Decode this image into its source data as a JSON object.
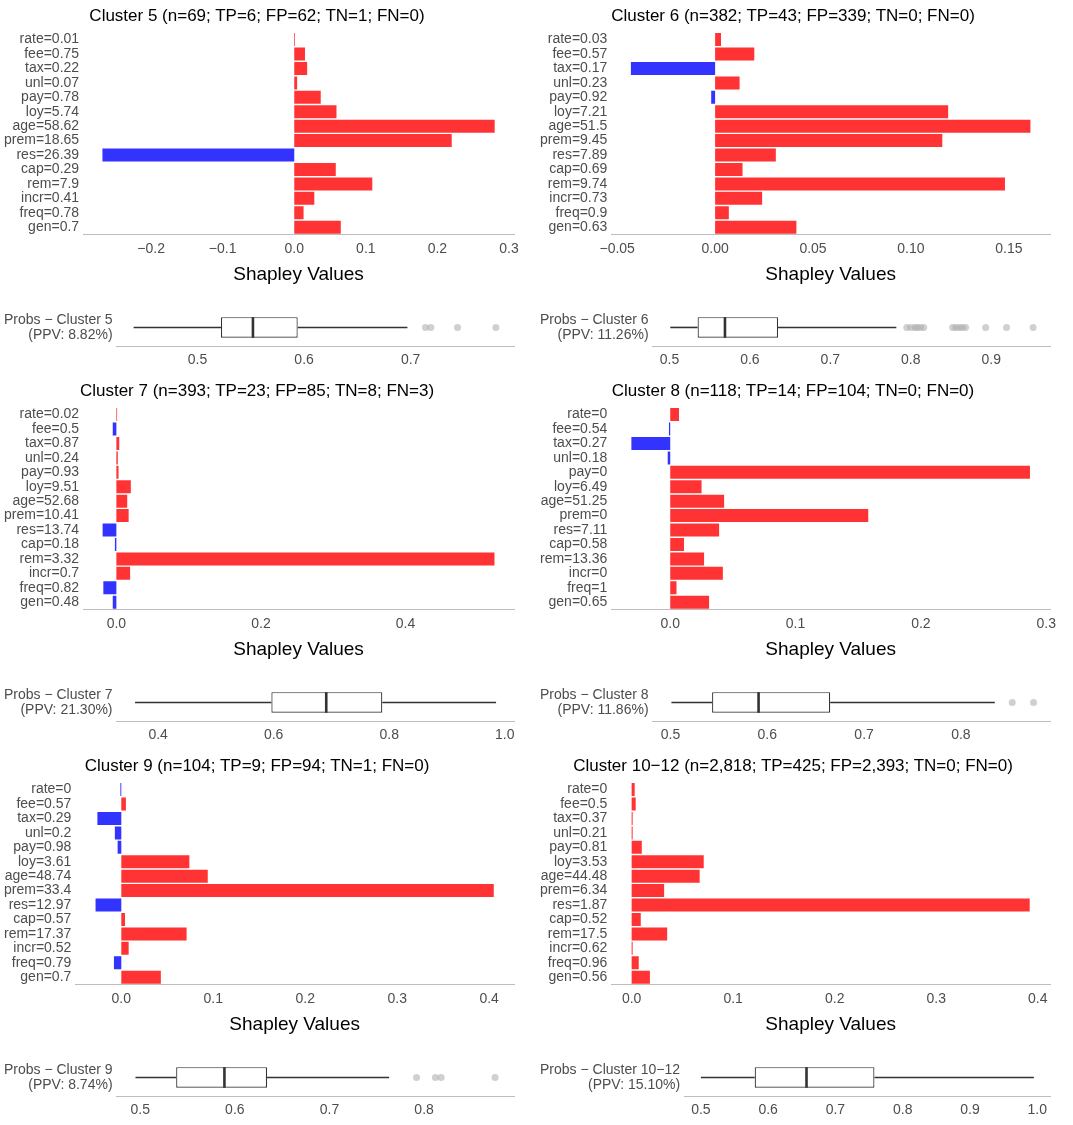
{
  "chart_data": [
    {
      "type": "bar",
      "orientation": "horizontal",
      "title": "Cluster 5 (n=69; TP=6; FP=62; TN=1; FN=0)",
      "xlabel": "Shapley Values",
      "categories": [
        "rate=0.01",
        "fee=0.75",
        "tax=0.22",
        "unl=0.07",
        "pay=0.78",
        "loy=5.74",
        "age=58.62",
        "prem=18.65",
        "res=26.39",
        "cap=0.29",
        "rem=7.9",
        "incr=0.41",
        "freq=0.78",
        "gen=0.7"
      ],
      "values": [
        0.001,
        0.015,
        0.018,
        0.004,
        0.037,
        0.059,
        0.28,
        0.22,
        -0.268,
        0.058,
        0.109,
        0.028,
        0.013,
        0.065
      ],
      "colors": [
        "#ff3333",
        "#ff3333",
        "#ff3333",
        "#ff3333",
        "#ff3333",
        "#ff3333",
        "#ff3333",
        "#ff3333",
        "#3333ff",
        "#ff3333",
        "#ff3333",
        "#ff3333",
        "#ff3333",
        "#ff3333"
      ],
      "xlim": [
        -0.295,
        0.307
      ],
      "xticks": [
        {
          "value": -0.2,
          "label": "−0.2"
        },
        {
          "value": -0.1,
          "label": "−0.1"
        },
        {
          "value": 0,
          "label": "0.0"
        },
        0.1,
        0.2,
        0.3
      ]
    },
    {
      "type": "bar",
      "orientation": "horizontal",
      "title": "Cluster 6 (n=382; TP=43; FP=339; TN=0; FN=0)",
      "xlabel": "Shapley Values",
      "categories": [
        "rate=0.03",
        "fee=0.57",
        "tax=0.17",
        "unl=0.23",
        "pay=0.92",
        "loy=7.21",
        "age=51.5",
        "prem=9.45",
        "res=7.89",
        "cap=0.69",
        "rem=9.74",
        "incr=0.73",
        "freq=0.9",
        "gen=0.63"
      ],
      "values": [
        0.003,
        0.02,
        -0.043,
        0.0125,
        -0.002,
        0.119,
        0.161,
        0.116,
        0.031,
        0.014,
        0.148,
        0.024,
        0.007,
        0.0415
      ],
      "colors": [
        "#ff3333",
        "#ff3333",
        "#3333ff",
        "#ff3333",
        "#3333ff",
        "#ff3333",
        "#ff3333",
        "#ff3333",
        "#ff3333",
        "#ff3333",
        "#ff3333",
        "#ff3333",
        "#ff3333",
        "#ff3333"
      ],
      "xlim": [
        -0.053,
        0.171
      ],
      "xticks": [
        {
          "value": -0.05,
          "label": "−0.05"
        },
        {
          "value": 0,
          "label": "0.00"
        },
        0.05,
        {
          "value": 0.1,
          "label": "0.10"
        },
        0.15
      ]
    },
    {
      "type": "box",
      "orientation": "horizontal",
      "categories": [
        "Probs − Cluster 5\n(PPV: 8.82%)"
      ],
      "color": "#333333",
      "boxes": [
        {
          "low": 0.44,
          "q1": 0.522,
          "median": 0.552,
          "q3": 0.594,
          "high": 0.697,
          "outliers": [
            0.714,
            0.719,
            0.744,
            0.78
          ]
        }
      ],
      "xlim": [
        0.424,
        0.797
      ],
      "xticks": [
        0.5,
        0.6,
        0.7
      ]
    },
    {
      "type": "box",
      "orientation": "horizontal",
      "categories": [
        "Probs − Cluster 6\n(PPV: 11.26%)"
      ],
      "color": "#333333",
      "boxes": [
        {
          "low": 0.501,
          "q1": 0.535,
          "median": 0.569,
          "q3": 0.635,
          "high": 0.782,
          "outliers": [
            0.795,
            0.8,
            0.805,
            0.808,
            0.812,
            0.816,
            0.852,
            0.856,
            0.86,
            0.864,
            0.868,
            0.893,
            0.919,
            0.952
          ]
        }
      ],
      "xlim": [
        0.479,
        0.973
      ],
      "xticks": [
        0.5,
        0.6,
        0.7,
        0.8,
        0.9
      ]
    },
    {
      "type": "bar",
      "orientation": "horizontal",
      "title": "Cluster 7 (n=393; TP=23; FP=85; TN=8; FN=3)",
      "xlabel": "Shapley Values",
      "categories": [
        "rate=0.02",
        "fee=0.5",
        "tax=0.87",
        "unl=0.24",
        "pay=0.93",
        "loy=9.51",
        "age=52.68",
        "prem=10.41",
        "res=13.74",
        "cap=0.18",
        "rem=3.32",
        "incr=0.7",
        "freq=0.82",
        "gen=0.48"
      ],
      "values": [
        0.001,
        -0.005,
        0.004,
        0.002,
        0.003,
        0.02,
        0.015,
        0.017,
        -0.019,
        -0.002,
        0.523,
        0.019,
        -0.018,
        -0.005
      ],
      "colors": [
        "#ff3333",
        "#3333ff",
        "#ff3333",
        "#ff3333",
        "#ff3333",
        "#ff3333",
        "#ff3333",
        "#ff3333",
        "#3333ff",
        "#3333ff",
        "#ff3333",
        "#ff3333",
        "#3333ff",
        "#3333ff"
      ],
      "xlim": [
        -0.046,
        0.55
      ],
      "xticks": [
        {
          "value": 0,
          "label": "0.0"
        },
        0.2,
        0.4
      ]
    },
    {
      "type": "bar",
      "orientation": "horizontal",
      "title": "Cluster 8 (n=118; TP=14; FP=104; TN=0; FN=0)",
      "xlabel": "Shapley Values",
      "categories": [
        "rate=0",
        "fee=0.54",
        "tax=0.27",
        "unl=0.18",
        "pay=0",
        "loy=6.49",
        "age=51.25",
        "prem=0",
        "res=7.11",
        "cap=0.58",
        "rem=13.36",
        "incr=0",
        "freq=1",
        "gen=0.65"
      ],
      "values": [
        0.007,
        -0.001,
        -0.031,
        -0.002,
        0.287,
        0.025,
        0.043,
        0.158,
        0.039,
        0.011,
        0.027,
        0.042,
        0.005,
        0.031
      ],
      "colors": [
        "#ff3333",
        "#3333ff",
        "#3333ff",
        "#3333ff",
        "#ff3333",
        "#ff3333",
        "#ff3333",
        "#ff3333",
        "#ff3333",
        "#ff3333",
        "#ff3333",
        "#ff3333",
        "#ff3333",
        "#ff3333"
      ],
      "xlim": [
        -0.047,
        0.303
      ],
      "xticks": [
        {
          "value": 0,
          "label": "0.0"
        },
        0.1,
        0.2,
        0.3
      ]
    },
    {
      "type": "box",
      "orientation": "horizontal",
      "categories": [
        "Probs − Cluster 7\n(PPV: 21.30%)"
      ],
      "color": "#333333",
      "boxes": [
        {
          "low": 0.36,
          "q1": 0.596,
          "median": 0.691,
          "q3": 0.788,
          "high": 0.985
        }
      ],
      "xlim": [
        0.328,
        1.016
      ],
      "xticks": [
        0.4,
        0.6,
        0.8,
        {
          "value": 1,
          "label": "1.0"
        }
      ]
    },
    {
      "type": "box",
      "orientation": "horizontal",
      "categories": [
        "Probs − Cluster 8\n(PPV: 11.86%)"
      ],
      "color": "#333333",
      "boxes": [
        {
          "low": 0.501,
          "q1": 0.543,
          "median": 0.591,
          "q3": 0.665,
          "high": 0.835,
          "outliers": [
            0.853,
            0.875
          ]
        }
      ],
      "xlim": [
        0.4815,
        0.892
      ],
      "xticks": [
        0.5,
        0.6,
        0.7,
        0.8
      ]
    },
    {
      "type": "bar",
      "orientation": "horizontal",
      "title": "Cluster 9 (n=104; TP=9; FP=94; TN=1; FN=0)",
      "xlabel": "Shapley Values",
      "categories": [
        "rate=0",
        "fee=0.57",
        "tax=0.29",
        "unl=0.2",
        "pay=0.98",
        "loy=3.61",
        "age=48.74",
        "prem=33.4",
        "res=12.97",
        "cap=0.57",
        "rem=17.37",
        "incr=0.52",
        "freq=0.79",
        "gen=0.7"
      ],
      "values": [
        -0.001,
        0.005,
        -0.026,
        -0.007,
        -0.004,
        0.074,
        0.094,
        0.405,
        -0.028,
        0.004,
        0.071,
        0.008,
        -0.008,
        0.043
      ],
      "colors": [
        "#3333ff",
        "#ff3333",
        "#3333ff",
        "#3333ff",
        "#3333ff",
        "#ff3333",
        "#ff3333",
        "#ff3333",
        "#3333ff",
        "#ff3333",
        "#ff3333",
        "#ff3333",
        "#3333ff",
        "#ff3333"
      ],
      "xlim": [
        -0.05,
        0.427
      ],
      "xticks": [
        {
          "value": 0,
          "label": "0.0"
        },
        0.1,
        0.2,
        0.3,
        0.4
      ]
    },
    {
      "type": "bar",
      "orientation": "horizontal",
      "title": "Cluster 10−12 (n=2,818; TP=425; FP=2,393; TN=0; FN=0)",
      "xlabel": "Shapley Values",
      "categories": [
        "rate=0",
        "fee=0.5",
        "tax=0.37",
        "unl=0.21",
        "pay=0.81",
        "loy=3.53",
        "age=44.48",
        "prem=6.34",
        "res=1.87",
        "cap=0.52",
        "rem=17.5",
        "incr=0.62",
        "freq=0.96",
        "gen=0.56"
      ],
      "values": [
        0.003,
        0.004,
        0.001,
        0.001,
        0.01,
        0.071,
        0.067,
        0.032,
        0.392,
        0.009,
        0.035,
        0.001,
        0.007,
        0.018
      ],
      "colors": [
        "#ff3333",
        "#ff3333",
        "#ff3333",
        "#ff3333",
        "#ff3333",
        "#ff3333",
        "#ff3333",
        "#ff3333",
        "#ff3333",
        "#ff3333",
        "#ff3333",
        "#ff3333",
        "#ff3333",
        "#ff3333"
      ],
      "xlim": [
        -0.02,
        0.412
      ],
      "xticks": [
        {
          "value": 0,
          "label": "0.0"
        },
        0.1,
        0.2,
        0.3,
        0.4
      ]
    },
    {
      "type": "box",
      "orientation": "horizontal",
      "categories": [
        "Probs − Cluster 9\n(PPV: 8.74%)"
      ],
      "color": "#333333",
      "boxes": [
        {
          "low": 0.495,
          "q1": 0.538,
          "median": 0.589,
          "q3": 0.634,
          "high": 0.763,
          "outliers": [
            0.792,
            0.812,
            0.818,
            0.875
          ]
        }
      ],
      "xlim": [
        0.475,
        0.895
      ],
      "xticks": [
        0.5,
        0.6,
        0.7,
        0.8
      ]
    },
    {
      "type": "box",
      "orientation": "horizontal",
      "categories": [
        "Probs − Cluster 10−12\n(PPV: 15.10%)"
      ],
      "color": "#333333",
      "boxes": [
        {
          "low": 0.5,
          "q1": 0.58,
          "median": 0.657,
          "q3": 0.758,
          "high": 0.995
        }
      ],
      "xlim": [
        0.475,
        1.019
      ],
      "xticks": [
        0.5,
        0.6,
        0.7,
        0.8,
        0.9,
        {
          "value": 1,
          "label": "1.0"
        }
      ]
    }
  ]
}
